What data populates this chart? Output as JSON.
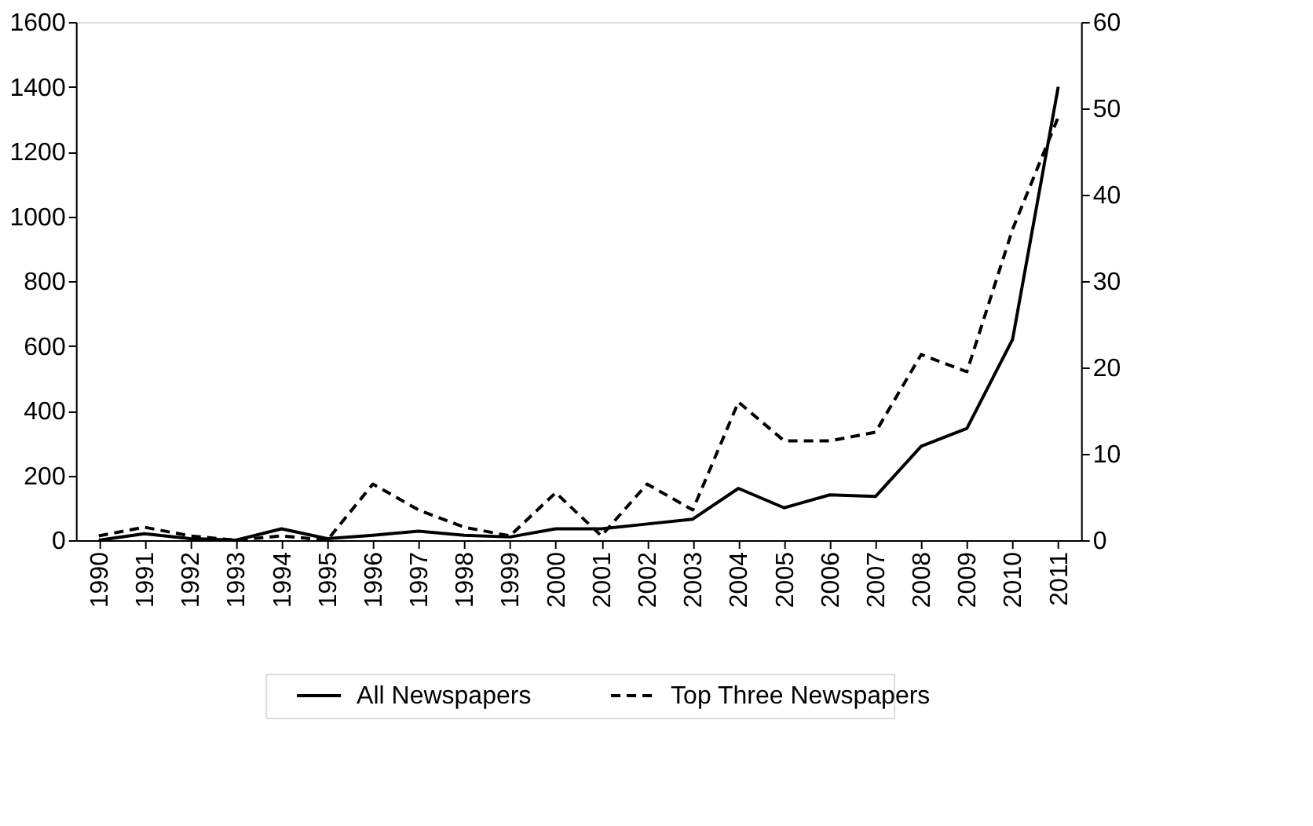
{
  "chart_data": {
    "type": "line",
    "categories": [
      "1990",
      "1991",
      "1992",
      "1993",
      "1994",
      "1995",
      "1996",
      "1997",
      "1998",
      "1999",
      "2000",
      "2001",
      "2002",
      "2003",
      "2004",
      "2005",
      "2006",
      "2007",
      "2008",
      "2009",
      "2010",
      "2011"
    ],
    "series": [
      {
        "name": "All Newspapers",
        "color": "#000000",
        "line_style": "solid",
        "values": [
          0,
          20,
          5,
          0,
          35,
          5,
          15,
          28,
          15,
          10,
          35,
          35,
          50,
          65,
          160,
          100,
          140,
          135,
          290,
          345,
          620,
          1400
        ]
      },
      {
        "name": "Top Three Newspapers",
        "color": "#000000",
        "line_style": "dashed",
        "axis": "y2",
        "values": [
          0.5,
          1.5,
          0.5,
          0,
          0.5,
          0,
          6.5,
          3.5,
          1.5,
          0.5,
          5.5,
          0.5,
          6.5,
          3.5,
          16,
          11.5,
          11.5,
          12.5,
          21.5,
          19.5,
          36,
          49
        ]
      }
    ],
    "ylim": [
      0,
      1600
    ],
    "yticks": [
      0,
      200,
      400,
      600,
      800,
      {
        "value": 1000,
        "label": "1000"
      },
      {
        "value": 1200,
        "label": "1200"
      },
      {
        "value": 1400,
        "label": "1400"
      },
      {
        "value": 1600,
        "label": "1600"
      }
    ],
    "y2lim": [
      0,
      60
    ],
    "y2ticks": [
      0,
      10,
      20,
      30,
      40,
      50,
      60
    ],
    "grid": false,
    "legend": "bottom",
    "marker": "none"
  }
}
